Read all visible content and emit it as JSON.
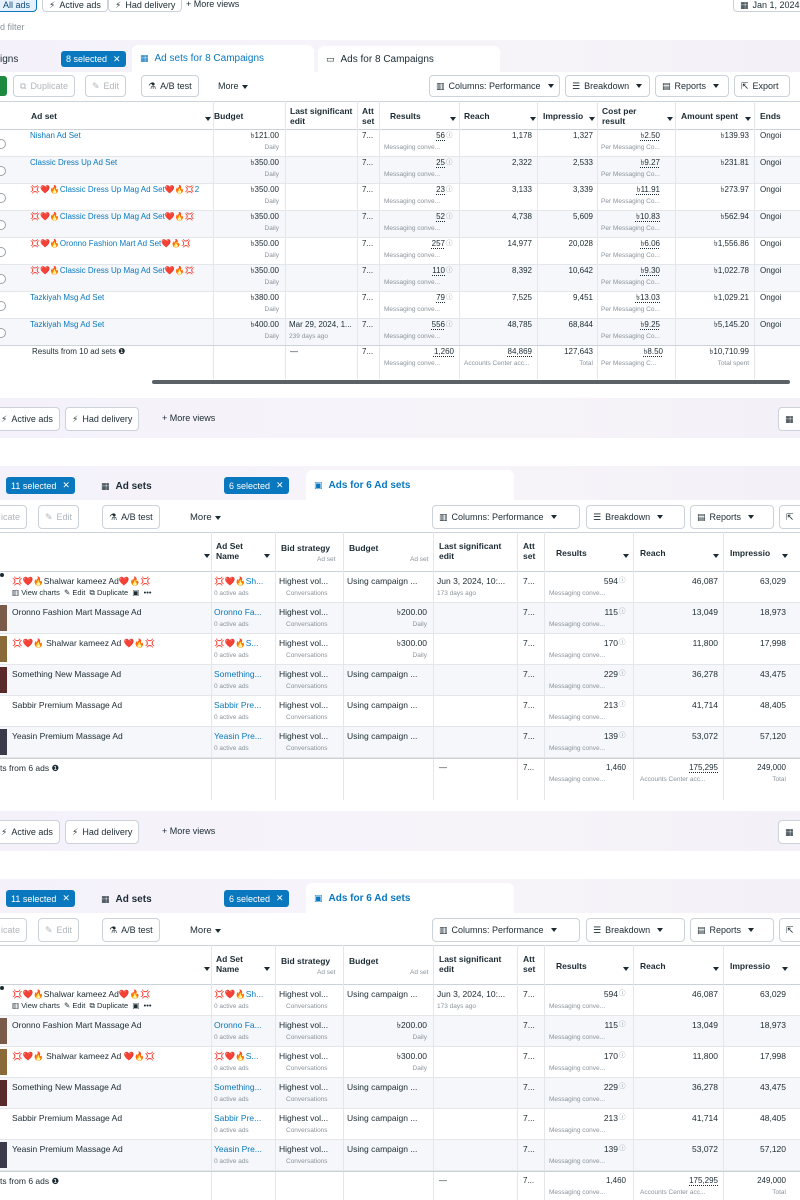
{
  "top": {
    "views": [
      "All ads",
      "Active ads",
      "Had delivery",
      "More views"
    ],
    "date": "Jan 1, 2024",
    "filter_placeholder": "d filter",
    "tabs": {
      "campaigns": "igns",
      "campaigns_badge": "8 selected",
      "adsets": "Ad sets for 8 Campaigns",
      "ads": "Ads for 8 Campaigns"
    },
    "toolbar": {
      "duplicate": "Duplicate",
      "edit": "Edit",
      "abtest": "A/B test",
      "more": "More",
      "columns": "Columns: Performance",
      "breakdown": "Breakdown",
      "reports": "Reports",
      "export": "Export"
    },
    "headers": {
      "adset": "Ad set",
      "budget": "Budget",
      "last_edit": "Last significant edit",
      "att": "Att set",
      "results": "Results",
      "reach": "Reach",
      "impressions": "Impressio",
      "cost": "Cost per result",
      "spent": "Amount spent",
      "ends": "Ends"
    },
    "rows": [
      {
        "name": "Nishan Ad Set",
        "budget": "৳121.00",
        "budget_sub": "Daily",
        "edit": "",
        "edit_sub": "",
        "att": "7...",
        "results": "56",
        "results_sub": "Messaging conve...",
        "reach": "1,178",
        "impr": "1,327",
        "cost": "৳2.50",
        "cost_sub": "Per Messaging Co...",
        "spent": "৳139.93",
        "ends": "Ongoi"
      },
      {
        "name": "Classic Dress Up Ad Set",
        "budget": "৳350.00",
        "budget_sub": "Daily",
        "edit": "",
        "edit_sub": "",
        "att": "7...",
        "results": "25",
        "results_sub": "Messaging conve...",
        "reach": "2,322",
        "impr": "2,533",
        "cost": "৳9.27",
        "cost_sub": "Per Messaging Co...",
        "spent": "৳231.81",
        "ends": "Ongoi"
      },
      {
        "name": "💢❤️🔥Classic Dress Up Mag Ad Set❤️🔥💢2",
        "budget": "৳350.00",
        "budget_sub": "Daily",
        "edit": "",
        "edit_sub": "",
        "att": "7...",
        "results": "23",
        "results_sub": "Messaging conve...",
        "reach": "3,133",
        "impr": "3,339",
        "cost": "৳11.91",
        "cost_sub": "Per Messaging Co...",
        "spent": "৳273.97",
        "ends": "Ongoi"
      },
      {
        "name": "💢❤️🔥Classic Dress Up Mag Ad Set❤️🔥💢",
        "budget": "৳350.00",
        "budget_sub": "Daily",
        "edit": "",
        "edit_sub": "",
        "att": "7...",
        "results": "52",
        "results_sub": "Messaging conve...",
        "reach": "4,738",
        "impr": "5,609",
        "cost": "৳10.83",
        "cost_sub": "Per Messaging Co...",
        "spent": "৳562.94",
        "ends": "Ongoi"
      },
      {
        "name": "💢❤️🔥Oronno Fashion Mart Ad Set❤️🔥💢",
        "budget": "৳350.00",
        "budget_sub": "Daily",
        "edit": "",
        "edit_sub": "",
        "att": "7...",
        "results": "257",
        "results_sub": "Messaging conve...",
        "reach": "14,977",
        "impr": "20,028",
        "cost": "৳6.06",
        "cost_sub": "Per Messaging Co...",
        "spent": "৳1,556.86",
        "ends": "Ongoi"
      },
      {
        "name": "💢❤️🔥Classic Dress Up Mag Ad Set❤️🔥💢",
        "budget": "৳350.00",
        "budget_sub": "Daily",
        "edit": "",
        "edit_sub": "",
        "att": "7...",
        "results": "110",
        "results_sub": "Messaging conve...",
        "reach": "8,392",
        "impr": "10,642",
        "cost": "৳9.30",
        "cost_sub": "Per Messaging Co...",
        "spent": "৳1,022.78",
        "ends": "Ongoi"
      },
      {
        "name": "Tazkiyah Msg Ad Set",
        "budget": "৳380.00",
        "budget_sub": "Daily",
        "edit": "",
        "edit_sub": "",
        "att": "7...",
        "results": "79",
        "results_sub": "Messaging conve...",
        "reach": "7,525",
        "impr": "9,451",
        "cost": "৳13.03",
        "cost_sub": "Per Messaging Co...",
        "spent": "৳1,029.21",
        "ends": "Ongoi"
      },
      {
        "name": "Tazkiyah Msg Ad Set",
        "budget": "৳400.00",
        "budget_sub": "Daily",
        "edit": "Mar 29, 2024, 1...",
        "edit_sub": "239 days ago",
        "att": "7...",
        "results": "556",
        "results_sub": "Messaging conve...",
        "reach": "48,785",
        "impr": "68,844",
        "cost": "৳9.25",
        "cost_sub": "Per Messaging Co...",
        "spent": "৳5,145.20",
        "ends": "Ongoi"
      }
    ],
    "summary": {
      "label": "Results from 10 ad sets",
      "edit": "—",
      "att": "7...",
      "results": "1,260",
      "results_sub": "Messaging conve...",
      "reach": "84,869",
      "reach_sub": "Accounts Center acc...",
      "impr": "127,643",
      "impr_sub": "Total",
      "cost": "৳8.50",
      "cost_sub": "Per Messaging C...",
      "spent": "৳10,710.99",
      "spent_sub": "Total spent"
    }
  },
  "bottom": {
    "views": [
      "Active ads",
      "Had delivery",
      "More views"
    ],
    "tabs": {
      "campaigns_badge": "11 selected",
      "adsets": "Ad sets",
      "adsets_badge": "6 selected",
      "ads": "Ads for 6 Ad sets"
    },
    "toolbar": {
      "duplicate": "icate",
      "edit": "Edit",
      "abtest": "A/B test",
      "more": "More",
      "columns": "Columns: Performance",
      "breakdown": "Breakdown",
      "reports": "Reports"
    },
    "headers": {
      "adset_name": "Ad Set Name",
      "bid": "Bid strategy",
      "bid_sub": "Ad set",
      "budget": "Budget",
      "budget_sub": "Ad set",
      "last_edit": "Last significant edit",
      "att": "Att set",
      "results": "Results",
      "reach": "Reach",
      "impressions": "Impressio"
    },
    "row_actions": {
      "charts": "View charts",
      "edit": "Edit",
      "duplicate": "Duplicate"
    },
    "rows": [
      {
        "name": "💢❤️🔥Shalwar kameez Ad❤️🔥💢",
        "adset": "💢❤️🔥Sh...",
        "adset_sub": "0 active ads",
        "bid": "Highest vol...",
        "bid_sub": "Conversations",
        "budget": "Using campaign ...",
        "budget_sub": "",
        "edit": "Jun 3, 2024, 10:...",
        "edit_sub": "173 days ago",
        "att": "7...",
        "results": "594",
        "results_sub": "Messaging conve...",
        "reach": "46,087",
        "impr": "63,029"
      },
      {
        "name": "Oronno Fashion Mart Massage Ad",
        "adset": "Oronno Fa...",
        "adset_sub": "0 active ads",
        "bid": "Highest vol...",
        "bid_sub": "Conversations",
        "budget": "৳200.00",
        "budget_sub": "Daily",
        "edit": "",
        "edit_sub": "",
        "att": "7...",
        "results": "115",
        "results_sub": "Messaging conve...",
        "reach": "13,049",
        "impr": "18,973"
      },
      {
        "name": "💢❤️🔥 Shalwar kameez Ad ❤️🔥💢",
        "adset": "💢❤️🔥S...",
        "adset_sub": "0 active ads",
        "bid": "Highest vol...",
        "bid_sub": "Conversations",
        "budget": "৳300.00",
        "budget_sub": "Daily",
        "edit": "",
        "edit_sub": "",
        "att": "7...",
        "results": "170",
        "results_sub": "Messaging conve...",
        "reach": "11,800",
        "impr": "17,998"
      },
      {
        "name": "Something New Massage Ad",
        "adset": "Something...",
        "adset_sub": "0 active ads",
        "bid": "Highest vol...",
        "bid_sub": "Conversations",
        "budget": "Using campaign ...",
        "budget_sub": "",
        "edit": "",
        "edit_sub": "",
        "att": "7...",
        "results": "229",
        "results_sub": "Messaging conve...",
        "reach": "36,278",
        "impr": "43,475"
      },
      {
        "name": "Sabbir Premium Massage Ad",
        "adset": "Sabbir Pre...",
        "adset_sub": "0 active ads",
        "bid": "Highest vol...",
        "bid_sub": "Conversations",
        "budget": "Using campaign ...",
        "budget_sub": "",
        "edit": "",
        "edit_sub": "",
        "att": "7...",
        "results": "213",
        "results_sub": "Messaging conve...",
        "reach": "41,714",
        "impr": "48,405"
      },
      {
        "name": "Yeasin Premium Massage Ad",
        "adset": "Yeasin Pre...",
        "adset_sub": "0 active ads",
        "bid": "Highest vol...",
        "bid_sub": "Conversations",
        "budget": "Using campaign ...",
        "budget_sub": "",
        "edit": "",
        "edit_sub": "",
        "att": "7...",
        "results": "139",
        "results_sub": "Messaging conve...",
        "reach": "53,072",
        "impr": "57,120"
      }
    ],
    "summary": {
      "label": "ts from 6 ads",
      "edit": "—",
      "att": "7...",
      "results": "1,460",
      "results_sub": "Messaging conve...",
      "reach": "175,295",
      "reach_sub": "Accounts Center acc...",
      "impr": "249,000",
      "impr_sub": "Total"
    }
  }
}
